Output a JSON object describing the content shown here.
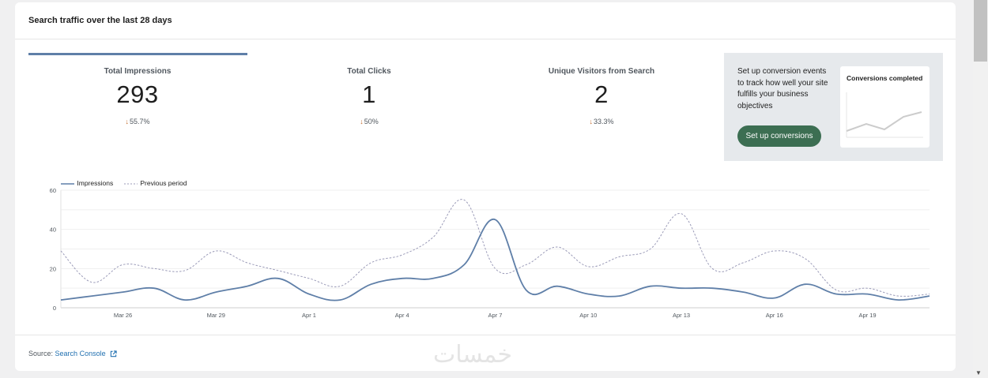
{
  "card": {
    "title": "Search traffic over the last 28 days"
  },
  "metrics": [
    {
      "label": "Total Impressions",
      "value": "293",
      "change": "55.7%",
      "direction": "down"
    },
    {
      "label": "Total Clicks",
      "value": "1",
      "change": "50%",
      "direction": "down"
    },
    {
      "label": "Unique Visitors from Search",
      "value": "2",
      "change": "33.3%",
      "direction": "down"
    }
  ],
  "promo": {
    "text": "Set up conversion events to track how well your site fulfills your business objectives",
    "button_label": "Set up conversions",
    "card_title": "Conversions completed"
  },
  "legend": {
    "series_1": "Impressions",
    "series_2": "Previous period"
  },
  "footer": {
    "source_prefix": "Source:",
    "source_link": "Search Console"
  },
  "watermark": "خمسات",
  "colors": {
    "accent": "#5f7fa8",
    "button": "#3c6e52",
    "change_arrow": "#c26a2b",
    "link": "#2271b1"
  },
  "icons": {
    "change": "arrow-down-icon",
    "external": "external-link-icon"
  },
  "chart_data": {
    "type": "line",
    "x_ticks": [
      "Mar 26",
      "Mar 29",
      "Apr 1",
      "Apr 4",
      "Apr 7",
      "Apr 10",
      "Apr 13",
      "Apr 16",
      "Apr 19"
    ],
    "y_ticks": [
      0,
      20,
      40,
      60
    ],
    "ylim": [
      0,
      60
    ],
    "x": [
      "Mar 24",
      "Mar 25",
      "Mar 26",
      "Mar 27",
      "Mar 28",
      "Mar 29",
      "Mar 30",
      "Mar 31",
      "Apr 1",
      "Apr 2",
      "Apr 3",
      "Apr 4",
      "Apr 5",
      "Apr 6",
      "Apr 7",
      "Apr 8",
      "Apr 9",
      "Apr 10",
      "Apr 11",
      "Apr 12",
      "Apr 13",
      "Apr 14",
      "Apr 15",
      "Apr 16",
      "Apr 17",
      "Apr 18",
      "Apr 19",
      "Apr 20",
      "Apr 21"
    ],
    "series": [
      {
        "name": "Impressions",
        "values": [
          4,
          6,
          8,
          10,
          4,
          8,
          11,
          15,
          7,
          4,
          12,
          15,
          15,
          22,
          45,
          9,
          11,
          7,
          6,
          11,
          10,
          10,
          8,
          5,
          12,
          7,
          7,
          4,
          6
        ]
      },
      {
        "name": "Previous period",
        "values": [
          29,
          13,
          22,
          20,
          19,
          29,
          23,
          19,
          15,
          11,
          23,
          27,
          36,
          55,
          20,
          22,
          31,
          21,
          26,
          30,
          48,
          20,
          23,
          29,
          25,
          9,
          10,
          6,
          7
        ]
      }
    ]
  }
}
